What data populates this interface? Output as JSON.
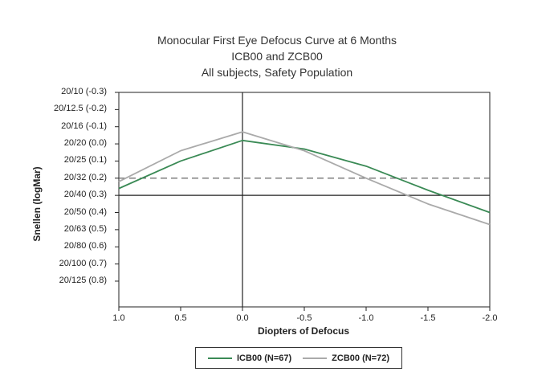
{
  "chart_data": {
    "type": "line",
    "title": "Monocular First Eye Defocus Curve at 6 Months",
    "subtitle_lines": [
      "ICB00 and ZCB00",
      "All subjects, Safety Population"
    ],
    "xlabel": "Diopters of Defocus",
    "ylabel": "Snellen (logMar)",
    "x_ticks": [
      "1.0",
      "0.5",
      "0.0",
      "-0.5",
      "-1.0",
      "-1.5",
      "-2.0"
    ],
    "x_values": [
      1.0,
      0.5,
      0.0,
      -0.5,
      -1.0,
      -1.5,
      -2.0
    ],
    "xlim": [
      1.0,
      -2.0
    ],
    "y_ticks": [
      "20/10 (-0.3)",
      "20/12.5 (-0.2)",
      "20/16 (-0.1)",
      "20/20 (0.0)",
      "20/25 (0.1)",
      "20/32 (0.2)",
      "20/40 (0.3)",
      "20/50 (0.4)",
      "20/63 (0.5)",
      "20/80 (0.6)",
      "20/100 (0.7)",
      "20/125 (0.8)"
    ],
    "y_tick_values": [
      -0.3,
      -0.2,
      -0.1,
      0.0,
      0.1,
      0.2,
      0.3,
      0.4,
      0.5,
      0.6,
      0.7,
      0.8
    ],
    "ylim": [
      -0.3,
      0.95
    ],
    "y_inverted": true,
    "reference_lines": [
      {
        "y": 0.2,
        "style": "dashed",
        "color": "#555555"
      },
      {
        "y": 0.3,
        "style": "solid",
        "color": "#222222"
      },
      {
        "x": 0.0,
        "style": "solid",
        "color": "#222222"
      }
    ],
    "series": [
      {
        "name": "ICB00 (N=67)",
        "color": "#3a8a55",
        "values": [
          0.26,
          0.1,
          -0.02,
          0.03,
          0.13,
          0.27,
          0.4
        ]
      },
      {
        "name": "ZCB00 (N=72)",
        "color": "#aaaaaa",
        "values": [
          0.22,
          0.04,
          -0.07,
          0.04,
          0.2,
          0.35,
          0.47
        ]
      }
    ],
    "legend_position": "bottom-center",
    "grid": false
  }
}
